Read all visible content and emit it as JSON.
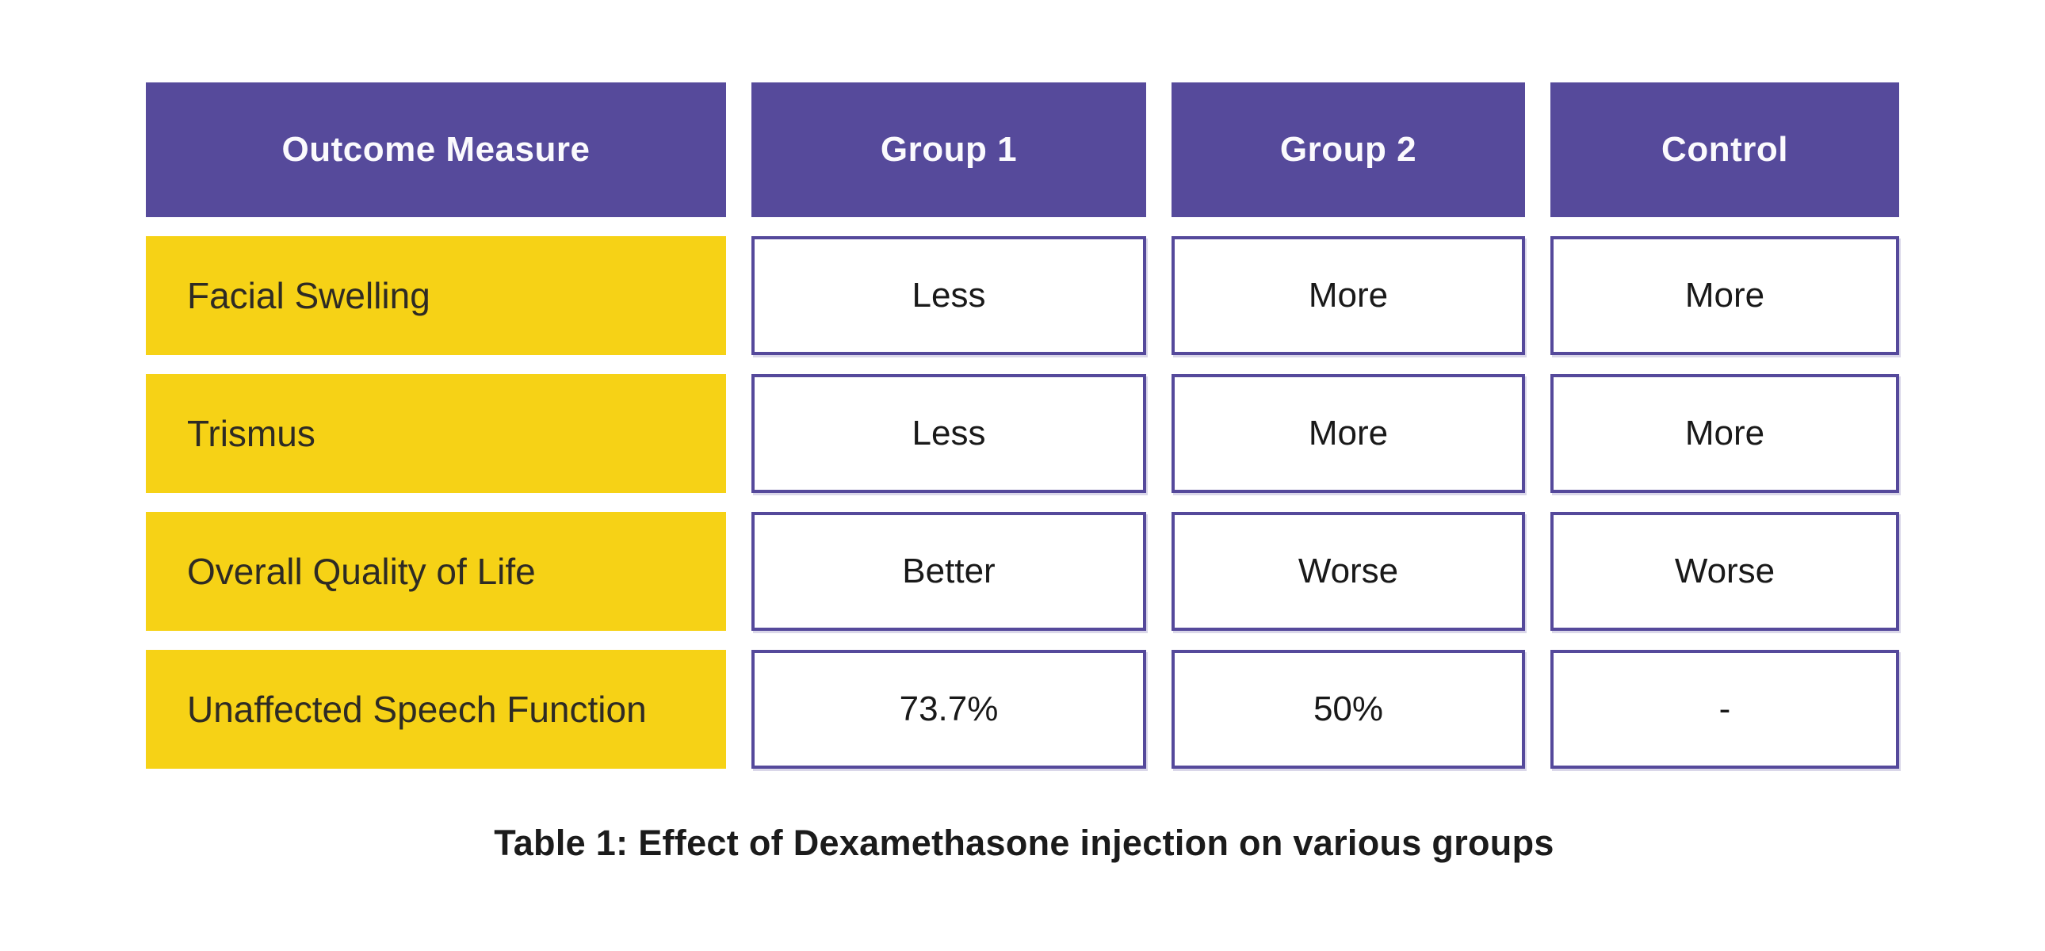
{
  "chart_data": {
    "type": "table",
    "title": "Table 1: Effect of Dexamethasone injection on various groups",
    "columns": [
      "Outcome Measure",
      "Group 1",
      "Group 2",
      "Control"
    ],
    "rows": [
      [
        "Facial Swelling",
        "Less",
        "More",
        "More"
      ],
      [
        "Trismus",
        "Less",
        "More",
        "More"
      ],
      [
        "Overall Quality of Life",
        "Better",
        "Worse",
        "Worse"
      ],
      [
        "Unaffected Speech Function",
        "73.7%",
        "50%",
        "-"
      ]
    ],
    "layout": {
      "header_position": "top",
      "row_label_column": "Outcome Measure",
      "caption_position": "bottom-center"
    }
  },
  "colors": {
    "header_bg": "#564A9B",
    "header_text": "#FBFAFD",
    "label_bg": "#F6D216",
    "label_text": "#2E2B24",
    "cell_bg": "#FFFFFF",
    "cell_border": "#55499B",
    "cell_text": "#191919",
    "caption_text": "#1B1B1B",
    "page_bg": "#FFFFFF"
  }
}
